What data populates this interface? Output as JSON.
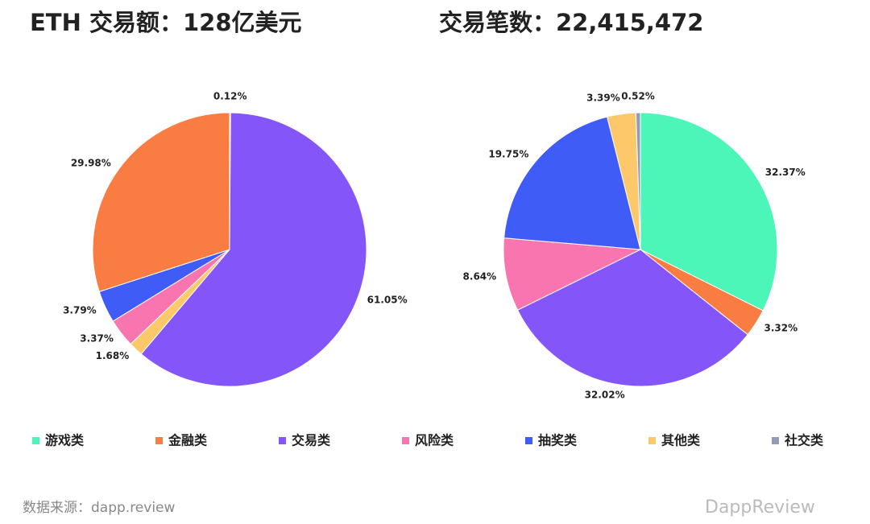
{
  "chart_data": [
    {
      "type": "pie",
      "title": "ETH 交易额：128亿美元",
      "categories": [
        "游戏类",
        "交易类",
        "其他类",
        "风险类",
        "抽奖类",
        "金融类"
      ],
      "values": [
        0.12,
        61.05,
        1.68,
        3.37,
        3.79,
        29.98
      ],
      "value_labels": [
        "0.12%",
        "61.05%",
        "1.68%",
        "3.37%",
        "3.79%",
        "29.98%"
      ],
      "colors": [
        "#4cf5b8",
        "#8455f8",
        "#fdc86a",
        "#f875b0",
        "#3f5cf6",
        "#f97d42"
      ]
    },
    {
      "type": "pie",
      "title": "交易笔数：22,415,472",
      "categories": [
        "游戏类",
        "金融类",
        "交易类",
        "风险类",
        "抽奖类",
        "其他类",
        "社交类"
      ],
      "values": [
        32.37,
        3.32,
        32.02,
        8.64,
        19.75,
        3.39,
        0.52
      ],
      "value_labels": [
        "32.37%",
        "3.32%",
        "32.02%",
        "8.64%",
        "19.75%",
        "3.39%",
        "0.52%"
      ],
      "colors": [
        "#4cf5b8",
        "#f97d42",
        "#8455f8",
        "#f875b0",
        "#3f5cf6",
        "#fdc86a",
        "#8f9cb8"
      ]
    }
  ],
  "legend": {
    "items": [
      {
        "name": "游戏类",
        "color": "#4cf5b8"
      },
      {
        "name": "金融类",
        "color": "#f97d42"
      },
      {
        "name": "交易类",
        "color": "#8455f8"
      },
      {
        "name": "风险类",
        "color": "#f875b0"
      },
      {
        "name": "抽奖类",
        "color": "#3f5cf6"
      },
      {
        "name": "其他类",
        "color": "#fdc86a"
      },
      {
        "name": "社交类",
        "color": "#8f9cb8"
      }
    ]
  },
  "footer": {
    "source": "数据来源：dapp.review",
    "watermark": "DappReview"
  }
}
